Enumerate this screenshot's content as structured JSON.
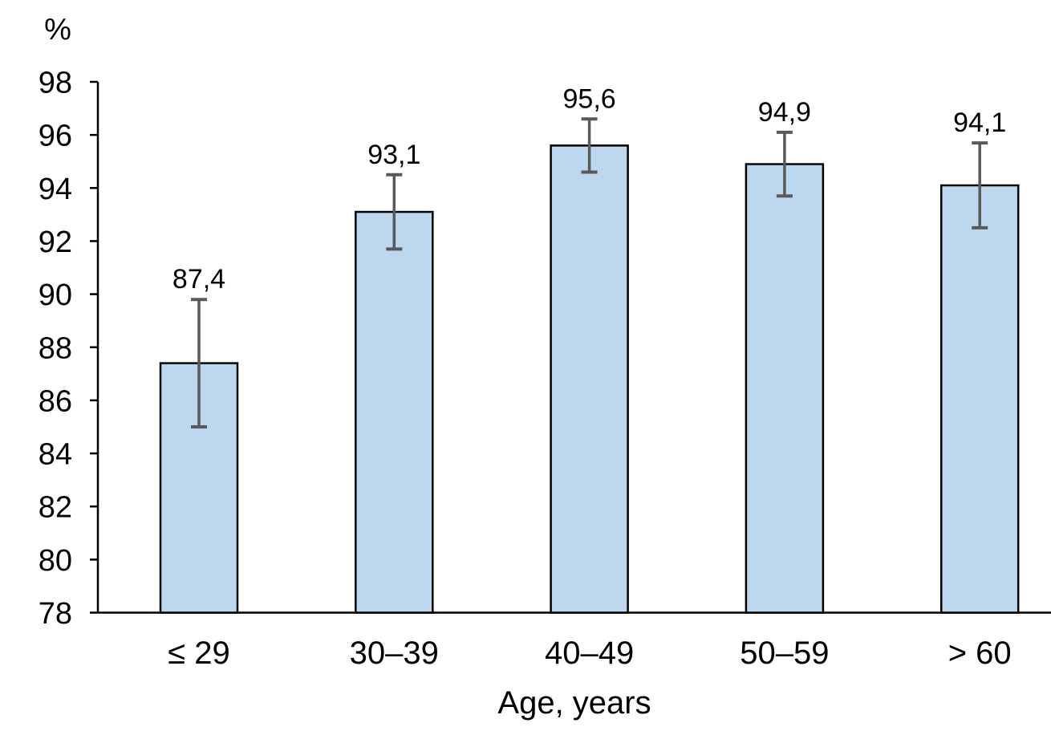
{
  "chart_data": {
    "type": "bar",
    "title": "",
    "ylabel": "%",
    "xlabel": "Age, years",
    "categories": [
      "≤ 29",
      "30–39",
      "40–49",
      "50–59",
      "> 60"
    ],
    "values": [
      87.4,
      93.1,
      95.6,
      94.9,
      94.1
    ],
    "value_labels": [
      "87,4",
      "93,1",
      "95,6",
      "94,9",
      "94,1"
    ],
    "error_bars": {
      "upper": [
        89.8,
        94.5,
        96.6,
        96.1,
        95.7
      ],
      "lower": [
        85.0,
        91.7,
        94.6,
        93.7,
        92.5
      ]
    },
    "ylim": [
      78,
      98
    ],
    "yticks": [
      78,
      80,
      82,
      84,
      86,
      88,
      90,
      92,
      94,
      96,
      98
    ],
    "ytick_step": 2,
    "grid": false,
    "legend": "none",
    "decimal_separator": ",",
    "colors": {
      "bar_fill": "#BDD7EE",
      "bar_border": "#000000",
      "error_bar": "#595959",
      "axis": "#000000",
      "text": "#000000"
    }
  }
}
